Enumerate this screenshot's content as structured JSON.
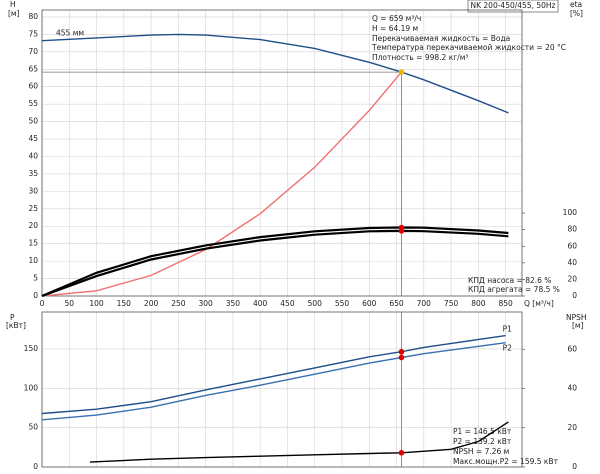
{
  "chart_data": [
    {
      "type": "line",
      "title": "NK 200-450/455, 50Hz",
      "xlabel": "Q [м³/ч]",
      "ylabel": "H",
      "yunit": "[м]",
      "y2label": "eta",
      "y2unit": "[%]",
      "xlim": [
        0,
        880
      ],
      "xticks": [
        0,
        50,
        100,
        150,
        200,
        250,
        300,
        350,
        400,
        450,
        500,
        550,
        600,
        650,
        700,
        750,
        800,
        850
      ],
      "ylim": [
        0,
        82
      ],
      "yticks": [
        0,
        5,
        10,
        15,
        20,
        25,
        30,
        35,
        40,
        45,
        50,
        55,
        60,
        65,
        70,
        75,
        80
      ],
      "y2lim": [
        0,
        345
      ],
      "y2ticks": [
        0,
        20,
        40,
        60,
        80,
        100
      ],
      "grid": true,
      "series": [
        {
          "name": "455 мм",
          "color": "#1f4e8c",
          "x": [
            0,
            100,
            200,
            250,
            300,
            400,
            500,
            600,
            659,
            700,
            800,
            855
          ],
          "values": [
            73.2,
            74,
            74.8,
            75,
            74.8,
            73.5,
            71,
            67,
            64.19,
            62,
            56,
            52.5
          ]
        },
        {
          "color": "#f07070",
          "x": [
            0,
            100,
            200,
            300,
            400,
            500,
            600,
            659
          ],
          "values": [
            0,
            1.5,
            5.9,
            13.3,
            23.6,
            36.9,
            53.2,
            64.19
          ]
        },
        {
          "color": "#000000",
          "axis": "y2",
          "x": [
            0,
            100,
            200,
            300,
            400,
            500,
            600,
            659,
            700,
            800,
            855
          ],
          "values": [
            0,
            28,
            48,
            61,
            71,
            78,
            82,
            82.6,
            82.4,
            79,
            76
          ]
        },
        {
          "color": "#000000",
          "axis": "y2",
          "x": [
            0,
            100,
            200,
            300,
            400,
            500,
            600,
            659,
            700,
            800,
            855
          ],
          "values": [
            0,
            24,
            44,
            57,
            67,
            74,
            78,
            78.5,
            78.2,
            75,
            72
          ]
        }
      ],
      "points": [
        {
          "x": 659,
          "y": 64.19,
          "color": "#f5b400"
        },
        {
          "x": 659,
          "y": 82.6,
          "axis": "y2",
          "color": "#e00000"
        },
        {
          "x": 659,
          "y": 78.5,
          "axis": "y2",
          "color": "#e00000"
        }
      ],
      "annotations": [
        "Q = 659 м³/ч",
        "H = 64.19 м",
        "Перекачиваемая жидкость = Вода",
        "Температура перекачиваемой жидкости = 20 °C",
        "Плотность = 998.2 кг/м³"
      ],
      "efficiency_notes": [
        "КПД насоса = 82.6 %",
        "КПД агрегата = 78.5 %"
      ]
    },
    {
      "type": "line",
      "ylabel": "P",
      "yunit": "[кВт]",
      "y2label": "NPSH",
      "y2unit": "[м]",
      "xlim": [
        0,
        880
      ],
      "ylim": [
        0,
        197
      ],
      "yticks": [
        0,
        50,
        100,
        150
      ],
      "y2lim": [
        0,
        79
      ],
      "y2ticks": [
        0,
        20,
        40,
        60
      ],
      "grid": true,
      "series": [
        {
          "name": "P1",
          "color": "#1f4e8c",
          "x": [
            0,
            100,
            200,
            300,
            400,
            500,
            600,
            659,
            700,
            850
          ],
          "values": [
            68,
            73.5,
            83,
            98,
            112,
            126,
            140,
            146.5,
            152,
            167
          ]
        },
        {
          "name": "P2",
          "color": "#3a6fb0",
          "x": [
            0,
            100,
            200,
            300,
            400,
            500,
            600,
            659,
            700,
            850
          ],
          "values": [
            60,
            66,
            76,
            91,
            104,
            118,
            132,
            139.2,
            144,
            158
          ]
        },
        {
          "color": "#000000",
          "axis": "y2",
          "x": [
            88,
            200,
            300,
            400,
            500,
            600,
            659,
            750,
            800,
            855
          ],
          "values": [
            2.5,
            4,
            4.8,
            5.5,
            6.2,
            6.9,
            7.26,
            9,
            13,
            23
          ]
        }
      ],
      "points": [
        {
          "x": 659,
          "y": 146.5,
          "color": "#e00000"
        },
        {
          "x": 659,
          "y": 139.2,
          "color": "#e00000"
        },
        {
          "x": 659,
          "y": 7.26,
          "axis": "y2",
          "color": "#e00000"
        }
      ],
      "annotations": [
        "P1 = 146.5 кВт",
        "P2 = 139.2 кВт",
        "NPSH = 7.26 м",
        "Макс.мощн.P2 = 159.5 кВт"
      ]
    }
  ]
}
